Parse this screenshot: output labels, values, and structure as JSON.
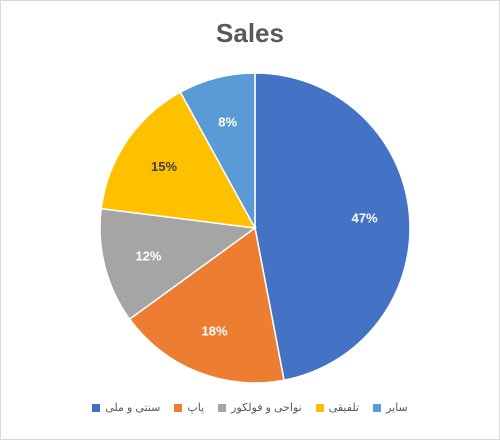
{
  "chart_data": {
    "type": "pie",
    "title": "Sales",
    "categories": [
      "سنتی و ملی",
      "پاپ",
      "نواحی و فولکور",
      "تلفیقی",
      "سایر"
    ],
    "values": [
      47,
      18,
      12,
      15,
      8
    ],
    "labels": [
      "47%",
      "18%",
      "12%",
      "15%",
      "8%"
    ],
    "colors": [
      "#4472c4",
      "#ed7d31",
      "#a5a5a5",
      "#ffc000",
      "#5b9bd5"
    ],
    "label_colors": [
      "#ffffff",
      "#ffffff",
      "#ffffff",
      "#404040",
      "#ffffff"
    ],
    "start_angle_deg": 0,
    "direction": "clockwise",
    "legend_position": "bottom"
  }
}
